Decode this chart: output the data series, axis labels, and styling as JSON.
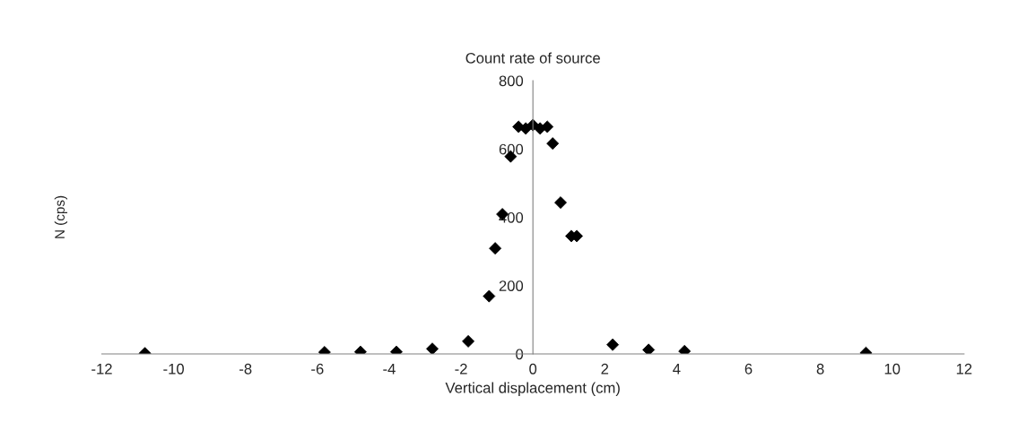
{
  "chart_data": {
    "type": "scatter",
    "title": "Count rate of source",
    "xlabel": "Vertical displacement (cm)",
    "ylabel": "N (cps)",
    "x": [
      -10.8,
      -5.8,
      -4.8,
      -3.8,
      -2.8,
      -1.8,
      -1.22,
      -1.05,
      -0.85,
      -0.62,
      -0.4,
      -0.2,
      0,
      0.2,
      0.4,
      0.55,
      0.77,
      1.07,
      1.22,
      2.22,
      3.22,
      4.22,
      9.27
    ],
    "series": [
      {
        "color": "#000000",
        "values": [
          2,
          5,
          6,
          6,
          15,
          37,
          169,
          309,
          409,
          578,
          665,
          660,
          670,
          660,
          665,
          616,
          443,
          345,
          345,
          27,
          12,
          8,
          3
        ]
      }
    ],
    "xlim": [
      -12,
      12
    ],
    "xticks": [
      -12,
      -10,
      -8,
      -6,
      -4,
      -2,
      0,
      2,
      4,
      6,
      8,
      10,
      12
    ],
    "ylim": [
      0,
      800
    ],
    "yticks": [
      0,
      200,
      400,
      600,
      800
    ],
    "marker": "diamond",
    "grid": false
  }
}
